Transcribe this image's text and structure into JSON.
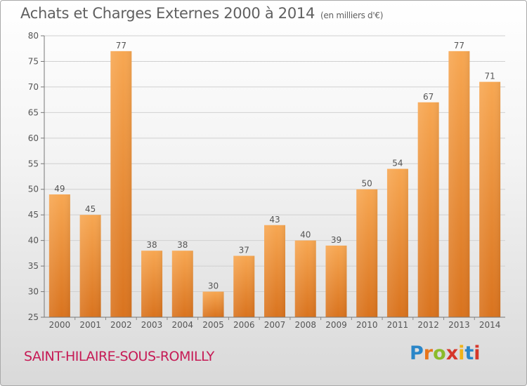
{
  "header": {
    "title": "Achats et Charges Externes 2000 à 2014",
    "unit": "(en milliers d'€)"
  },
  "footer": {
    "place": "SAINT-HILAIRE-SOUS-ROMILLY",
    "logo_text": "Proxiti",
    "logo_letters": [
      "P",
      "r",
      "o",
      "x",
      "i",
      "t",
      "i"
    ]
  },
  "colors": {
    "bar_top": "#f7a752",
    "bar_bottom": "#d9731e",
    "grid": "#d0d0d0",
    "axis_text": "#555555",
    "place_text": "#c61a55"
  },
  "chart_data": {
    "type": "bar",
    "title": "Achats et Charges Externes 2000 à 2014",
    "subtitle": "(en milliers d'€)",
    "xlabel": "",
    "ylabel": "",
    "categories": [
      "2000",
      "2001",
      "2002",
      "2003",
      "2004",
      "2005",
      "2006",
      "2007",
      "2008",
      "2009",
      "2010",
      "2011",
      "2012",
      "2013",
      "2014"
    ],
    "values": [
      49,
      45,
      77,
      38,
      38,
      30,
      37,
      43,
      40,
      39,
      50,
      54,
      67,
      77,
      71
    ],
    "ylim": [
      25,
      80
    ],
    "yticks": [
      25,
      30,
      35,
      40,
      45,
      50,
      55,
      60,
      65,
      70,
      75,
      80
    ],
    "grid": true,
    "data_labels": true,
    "legend": "none"
  }
}
